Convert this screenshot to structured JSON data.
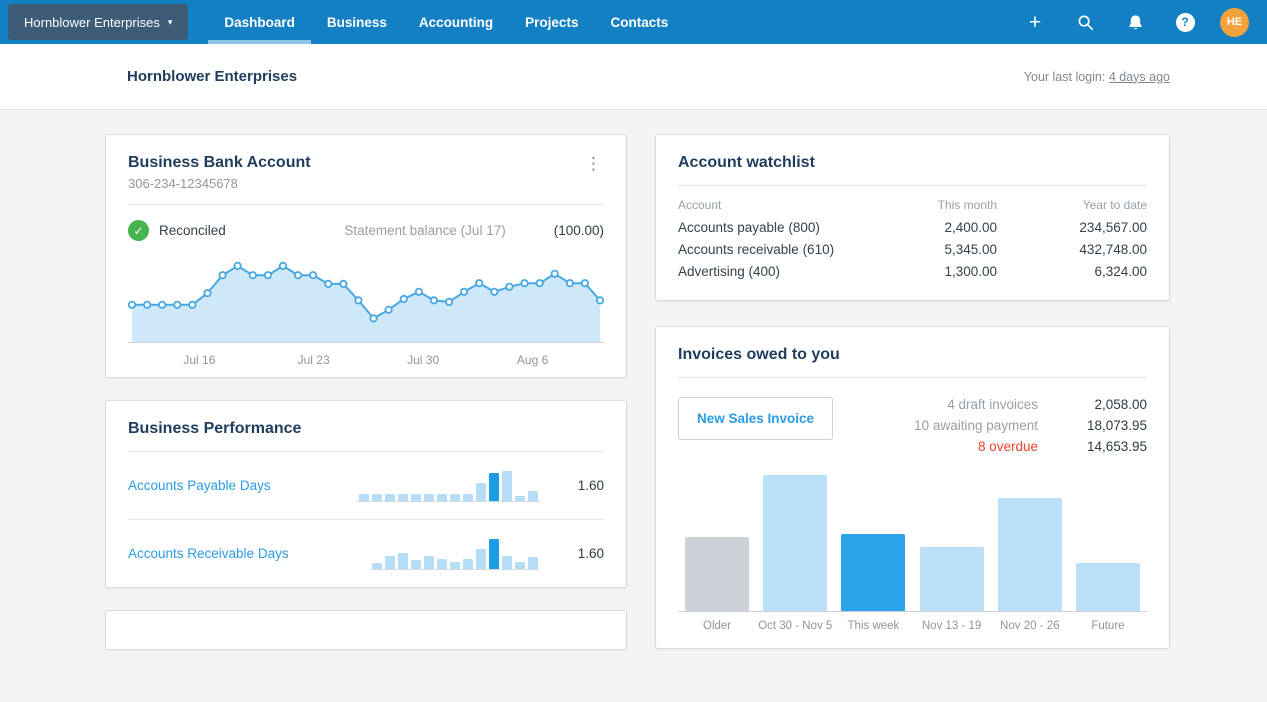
{
  "nav": {
    "org_selector": {
      "label": "Hornblower Enterprises",
      "caret": "▾"
    },
    "items": [
      {
        "label": "Dashboard",
        "active": true
      },
      {
        "label": "Business",
        "active": false
      },
      {
        "label": "Accounting",
        "active": false
      },
      {
        "label": "Projects",
        "active": false
      },
      {
        "label": "Contacts",
        "active": false
      }
    ],
    "icons": {
      "plus": "+",
      "help": "?"
    },
    "avatar_initials": "HE"
  },
  "header": {
    "title": "Hornblower Enterprises",
    "last_login_label": "Your last login:",
    "last_login_value": "4 days ago"
  },
  "bank_card": {
    "title": "Business Bank Account",
    "account_number": "306-234-12345678",
    "kebab": "⋮",
    "status_check": "✓",
    "status": "Reconciled",
    "statement_label": "Statement balance (Jul 17)",
    "statement_value": "(100.00)"
  },
  "performance_card": {
    "title": "Business Performance",
    "rows": [
      {
        "label": "Accounts Payable Days",
        "value": "1.60"
      },
      {
        "label": "Accounts Receivable Days",
        "value": "1.60"
      }
    ]
  },
  "watchlist_card": {
    "title": "Account watchlist",
    "columns": [
      "Account",
      "This month",
      "Year to date"
    ],
    "rows": [
      {
        "account": "Accounts payable (800)",
        "this_month": "2,400.00",
        "year_to_date": "234,567.00"
      },
      {
        "account": "Accounts receivable (610)",
        "this_month": "5,345.00",
        "year_to_date": "432,748.00"
      },
      {
        "account": "Advertising (400)",
        "this_month": "1,300.00",
        "year_to_date": "6,324.00"
      }
    ]
  },
  "invoices_card": {
    "title": "Invoices owed to you",
    "button_label": "New Sales Invoice",
    "stats": [
      {
        "label": "4 draft invoices",
        "value": "2,058.00",
        "red": false
      },
      {
        "label": "10 awaiting payment",
        "value": "18,073.95",
        "red": false
      },
      {
        "label": "8 overdue",
        "value": "14,653.95",
        "red": true
      }
    ]
  },
  "chart_data": [
    {
      "id": "bank_balance_sparkline",
      "type": "line",
      "title": "Business Bank Account statement balance trend",
      "value_scale": "relative-0-100 (no axis labels shown)",
      "values": [
        42,
        42,
        42,
        42,
        42,
        58,
        83,
        96,
        83,
        83,
        96,
        83,
        83,
        71,
        71,
        48,
        23,
        35,
        50,
        60,
        48,
        46,
        60,
        72,
        60,
        67,
        72,
        72,
        85,
        72,
        72,
        48
      ],
      "x_labels": [
        "Jul 16",
        "Jul 23",
        "Jul 30",
        "Aug 6"
      ],
      "label_positions_pct": [
        15,
        39,
        62,
        85
      ],
      "grid": false,
      "legend": "none"
    },
    {
      "id": "accounts_payable_days",
      "type": "bar",
      "variant": "mini",
      "title": "Accounts Payable Days sparkbar",
      "value_scale": "relative-% of tallest bar (no axis shown)",
      "heights_pct": [
        25,
        25,
        25,
        25,
        25,
        25,
        25,
        25,
        25,
        59,
        94,
        100,
        18,
        35
      ],
      "highlight_index": 10,
      "displayed_value": "1.60"
    },
    {
      "id": "accounts_receivable_days",
      "type": "bar",
      "variant": "mini",
      "title": "Accounts Receivable Days sparkbar",
      "value_scale": "relative-% of tallest bar (no axis shown)",
      "heights_pct": [
        21,
        45,
        55,
        31,
        45,
        35,
        24,
        32,
        68,
        100,
        45,
        23,
        39
      ],
      "highlight_index": 9,
      "displayed_value": "1.60"
    },
    {
      "id": "invoices_owed",
      "type": "bar",
      "title": "Invoices owed to you by week",
      "categories": [
        "Older",
        "Oct 30 - Nov 5",
        "This week",
        "Nov 13 - 19",
        "Nov 20 - 26",
        "Future"
      ],
      "value_scale": "relative-% of tallest bar (no axis shown)",
      "heights_pct": [
        53,
        97,
        55,
        46,
        81,
        34
      ],
      "bar_styles": [
        "gray",
        "light",
        "dark",
        "light",
        "light",
        "light"
      ],
      "grid": false,
      "legend": "none"
    }
  ],
  "colors": {
    "nav_blue": "#1380c4",
    "nav_active_underline": "#8ec4e8",
    "org_button_bg": "#3d5c77",
    "avatar_bg": "#f2a33c",
    "title_navy": "#1f3d5c",
    "link_blue": "#2b9be4",
    "green_check": "#46b450",
    "overdue_red": "#e8442e",
    "spark_line": "#47a7e3",
    "spark_fill": "#cfe8f8",
    "spark_baseline": "#cdd3d7",
    "mini_bar_light": "#b5ddf5",
    "mini_bar_dark": "#1d9ce6",
    "bar_light": "#b9e0f7",
    "bar_dark": "#2aa3e8",
    "bar_gray": "#ccd2d7"
  }
}
